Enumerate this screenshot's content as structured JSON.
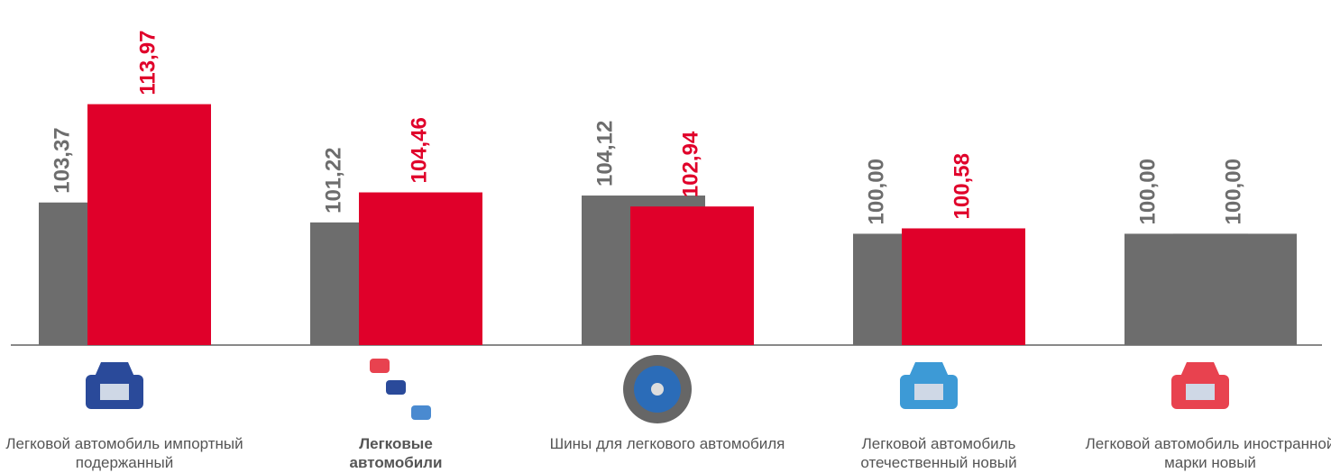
{
  "chart_data": {
    "type": "bar",
    "categories": [
      "Легковой автомобиль импортный подержанный",
      "Легковые автомобили",
      "Шины для легкового автомобиля",
      "Легковой автомобиль отечественный новый",
      "Легковой автомобиль иностранной марки новый"
    ],
    "bold_category": 1,
    "series": [
      {
        "color": "#6d6d6d",
        "values": [
          103.37,
          101.22,
          104.12,
          100.0,
          100.0
        ],
        "value_labels": [
          "103,37",
          "101,22",
          "104,12",
          "100,00",
          "100,00"
        ]
      },
      {
        "color": "#e0002a",
        "colors": [
          "#e0002a",
          "#e0002a",
          "#e0002a",
          "#e0002a",
          "#6d6d6d"
        ],
        "values": [
          113.97,
          104.46,
          102.94,
          100.58,
          100.0
        ],
        "value_labels": [
          "113,97",
          "104,46",
          "102,94",
          "100,58",
          "100,00"
        ]
      }
    ],
    "ylim": [
      88,
      125.2
    ]
  }
}
